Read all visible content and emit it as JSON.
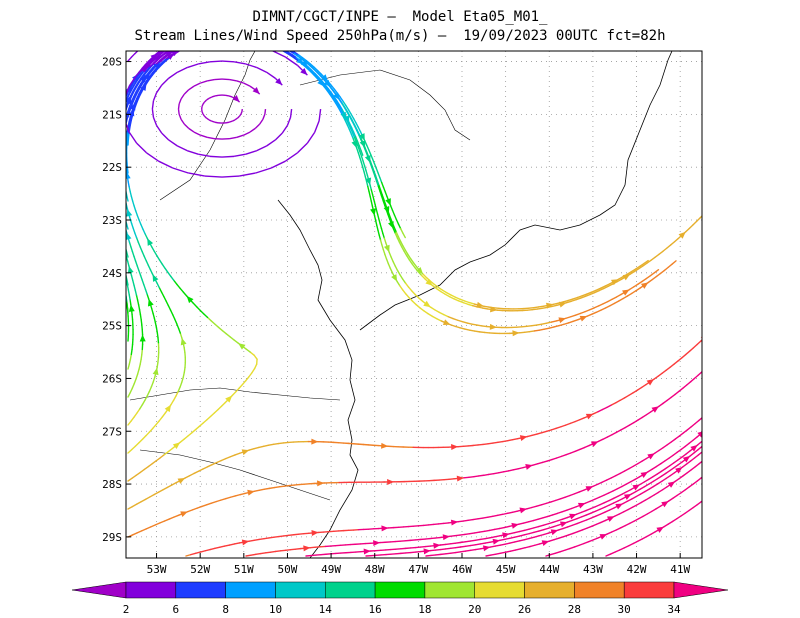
{
  "title": {
    "line1": "DIMNT/CGCT/INPE –  Model Eta05_M01_",
    "line2": "Stream Lines/Wind Speed 250hPa(m/s) –  19/09/2023 00UTC fct=82h"
  },
  "map": {
    "lon_range": [
      -53.7,
      -40.5
    ],
    "lat_range": [
      -29.4,
      -19.8
    ],
    "lat_labels": [
      "20S",
      "21S",
      "22S",
      "23S",
      "24S",
      "25S",
      "26S",
      "27S",
      "28S",
      "29S"
    ],
    "lat_values": [
      -20,
      -21,
      -22,
      -23,
      -24,
      -25,
      -26,
      -27,
      -28,
      -29
    ],
    "lon_labels": [
      "53W",
      "52W",
      "51W",
      "50W",
      "49W",
      "48W",
      "47W",
      "46W",
      "45W",
      "44W",
      "43W",
      "42W",
      "41W"
    ],
    "lon_values": [
      -53,
      -52,
      -51,
      -50,
      -49,
      -48,
      -47,
      -46,
      -45,
      -44,
      -43,
      -42,
      -41
    ],
    "grid": "dotted"
  },
  "colorbar": {
    "labels": [
      "2",
      "6",
      "8",
      "10",
      "14",
      "16",
      "18",
      "20",
      "26",
      "28",
      "30",
      "34"
    ],
    "colors": [
      "#a000c8",
      "#8200dc",
      "#1e3cff",
      "#00a0ff",
      "#00c8c8",
      "#00d28c",
      "#00dc00",
      "#a0e632",
      "#e6dc32",
      "#e6af2d",
      "#f08228",
      "#fa3c3c",
      "#f00082"
    ]
  },
  "streamlines": {
    "vortex_center": {
      "lon": -51.5,
      "lat": -20.9
    }
  }
}
